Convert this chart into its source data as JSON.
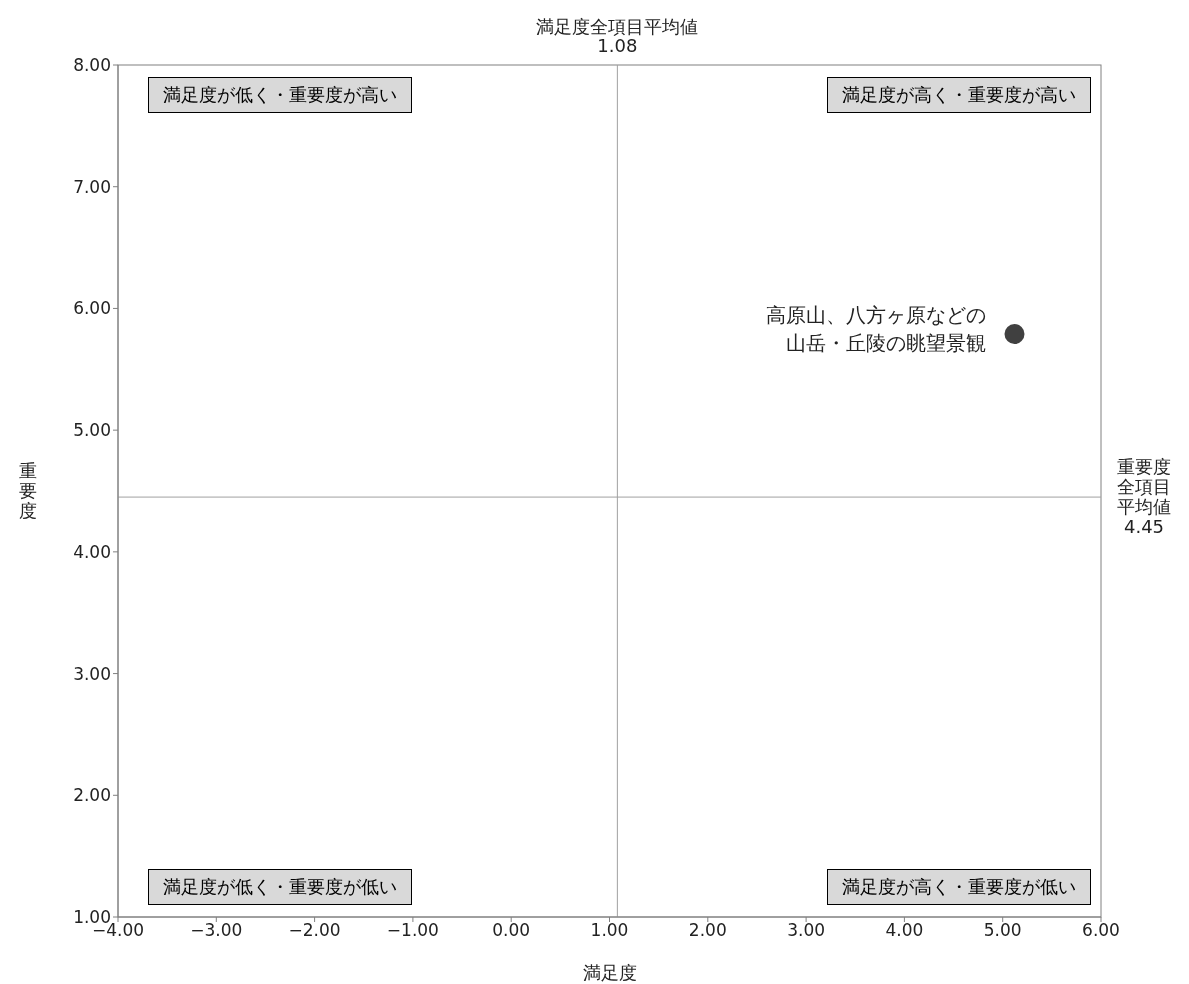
{
  "chart_data": {
    "type": "scatter",
    "xlabel": "満足度",
    "ylabel": "重要度",
    "xlim": [
      -4,
      6
    ],
    "xticks": [
      {
        "value": -4,
        "label": "−4.00"
      },
      {
        "value": -3,
        "label": "−3.00"
      },
      {
        "value": -2,
        "label": "−2.00"
      },
      {
        "value": -1,
        "label": "−1.00"
      },
      {
        "value": 0,
        "label": "0.00"
      },
      {
        "value": 1,
        "label": "1.00"
      },
      {
        "value": 2,
        "label": "2.00"
      },
      {
        "value": 3,
        "label": "3.00"
      },
      {
        "value": 4,
        "label": "4.00"
      },
      {
        "value": 5,
        "label": "5.00"
      },
      {
        "value": 6,
        "label": "6.00"
      }
    ],
    "ylim": [
      1,
      8
    ],
    "yticks": [
      {
        "value": 1,
        "label": "1.00"
      },
      {
        "value": 2,
        "label": "2.00"
      },
      {
        "value": 3,
        "label": "3.00"
      },
      {
        "value": 4,
        "label": "4.00"
      },
      {
        "value": 5,
        "label": "5.00"
      },
      {
        "value": 6,
        "label": "6.00"
      },
      {
        "value": 7,
        "label": "7.00"
      },
      {
        "value": 8,
        "label": "8.00"
      }
    ],
    "series": [
      {
        "name": "高原山、八方ヶ原などの山岳・丘陵の眺望景観",
        "color": "#404040",
        "x": [
          5.12
        ],
        "values": [
          5.79
        ]
      }
    ],
    "ref_lines": [
      {
        "axis": "x",
        "value": 1.08,
        "label": "満足度全項目平均値\n1.08",
        "color": "#a0a0a0"
      },
      {
        "axis": "y",
        "value": 4.45,
        "label": "重要度全項目平均値\n4.45",
        "color": "#a0a0a0"
      }
    ],
    "annotations": [
      "満足度が低く・重要度が高い",
      "満足度が高く・重要度が高い",
      "満足度が低く・重要度が低い",
      "満足度が高く・重要度が低い"
    ],
    "marker": "circle"
  }
}
